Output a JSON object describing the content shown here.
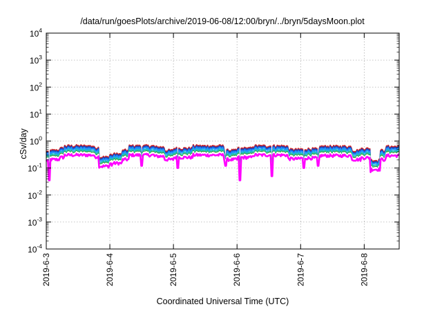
{
  "chart_data": {
    "type": "line",
    "title": "/data/run/goesPlots/archive/2019-06-08/12:00/bryn/../bryn/5daysMoon.plot",
    "xlabel": "Coordinated Universal Time (UTC)",
    "ylabel": "cSv/day",
    "yscale": "log",
    "ylim": [
      0.0001,
      10000
    ],
    "yticks": [
      {
        "base": "10",
        "exp": "-4"
      },
      {
        "base": "10",
        "exp": "-3"
      },
      {
        "base": "10",
        "exp": "-2"
      },
      {
        "base": "10",
        "exp": "-1"
      },
      {
        "base": "10",
        "exp": "0"
      },
      {
        "base": "10",
        "exp": "1"
      },
      {
        "base": "10",
        "exp": "2"
      },
      {
        "base": "10",
        "exp": "3"
      },
      {
        "base": "10",
        "exp": "4"
      }
    ],
    "xlim_days": [
      0,
      5.55
    ],
    "xticks": [
      "2019-6-3",
      "2019-6-4",
      "2019-6-5",
      "2019-6-6",
      "2019-6-7",
      "2019-6-8"
    ],
    "grid": true,
    "legend": "none",
    "series_colors": [
      "#d62728",
      "#1f3fb4",
      "#1e90ff",
      "#20c0c0",
      "#2ca02c",
      "#ffffff",
      "#ff00ff"
    ],
    "series_scale": [
      1.45,
      1.32,
      1.18,
      1.0,
      0.86,
      0.8,
      0.68
    ],
    "baseline_segments": [
      {
        "x": [
          0.0,
          0.05
        ],
        "y": 0.28
      },
      {
        "x": [
          0.05,
          0.2
        ],
        "y": 0.3
      },
      {
        "x": [
          0.2,
          0.28
        ],
        "y": 0.36
      },
      {
        "x": [
          0.28,
          0.75
        ],
        "y": 0.44
      },
      {
        "x": [
          0.75,
          0.82
        ],
        "y": 0.38
      },
      {
        "x": [
          0.82,
          1.0
        ],
        "y": 0.17
      },
      {
        "x": [
          1.0,
          1.2
        ],
        "y": 0.22
      },
      {
        "x": [
          1.2,
          1.3
        ],
        "y": 0.3
      },
      {
        "x": [
          1.3,
          1.7
        ],
        "y": 0.44
      },
      {
        "x": [
          1.7,
          1.85
        ],
        "y": 0.4
      },
      {
        "x": [
          1.85,
          2.0
        ],
        "y": 0.3
      },
      {
        "x": [
          2.0,
          2.3
        ],
        "y": 0.36
      },
      {
        "x": [
          2.3,
          2.8
        ],
        "y": 0.44
      },
      {
        "x": [
          2.8,
          3.0
        ],
        "y": 0.3
      },
      {
        "x": [
          3.0,
          3.25
        ],
        "y": 0.36
      },
      {
        "x": [
          3.25,
          3.8
        ],
        "y": 0.44
      },
      {
        "x": [
          3.8,
          4.0
        ],
        "y": 0.32
      },
      {
        "x": [
          4.0,
          4.3
        ],
        "y": 0.34
      },
      {
        "x": [
          4.3,
          4.8
        ],
        "y": 0.42
      },
      {
        "x": [
          4.8,
          4.95
        ],
        "y": 0.3
      },
      {
        "x": [
          4.95,
          5.1
        ],
        "y": 0.35
      },
      {
        "x": [
          5.1,
          5.25
        ],
        "y": 0.13
      },
      {
        "x": [
          5.25,
          5.35
        ],
        "y": 0.3
      },
      {
        "x": [
          5.35,
          5.55
        ],
        "y": 0.42
      }
    ],
    "dips": [
      {
        "x": 0.05,
        "y": 0.035
      },
      {
        "x": 1.03,
        "y": 0.12
      },
      {
        "x": 1.5,
        "y": 0.12
      },
      {
        "x": 2.07,
        "y": 0.1
      },
      {
        "x": 2.82,
        "y": 0.12
      },
      {
        "x": 3.05,
        "y": 0.035
      },
      {
        "x": 3.55,
        "y": 0.05
      },
      {
        "x": 4.05,
        "y": 0.1
      },
      {
        "x": 4.28,
        "y": 0.12
      },
      {
        "x": 5.1,
        "y": 0.07
      },
      {
        "x": 5.22,
        "y": 0.08
      }
    ]
  }
}
